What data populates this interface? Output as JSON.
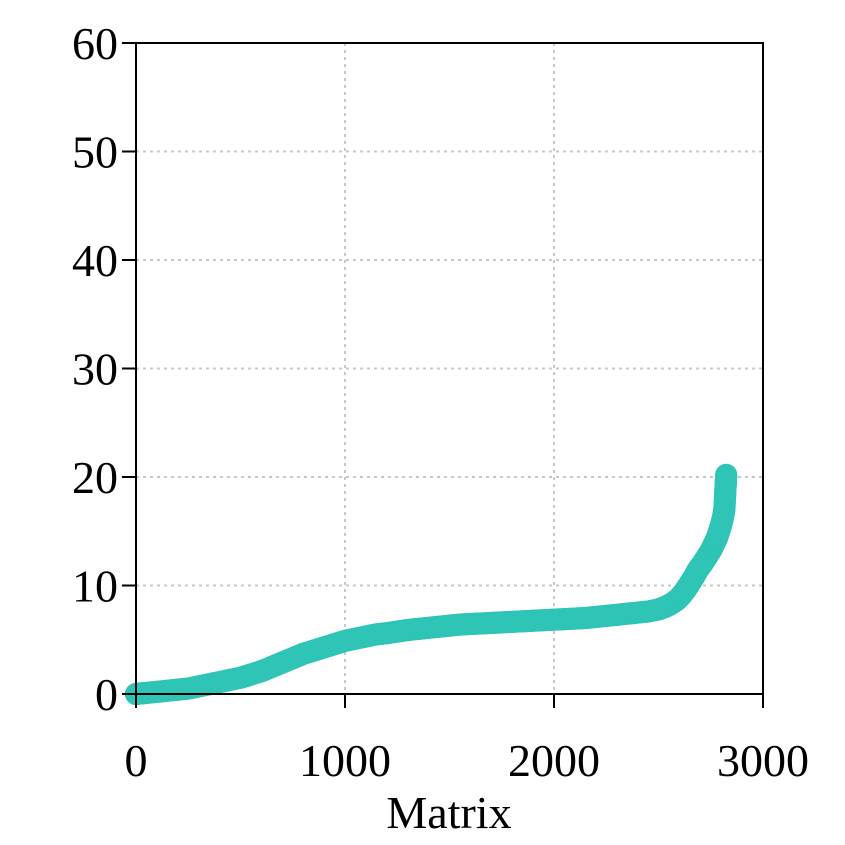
{
  "chart_data": {
    "type": "scatter",
    "title": "",
    "xlabel": "Matrix",
    "ylabel": "",
    "xlim": [
      0,
      3000
    ],
    "ylim": [
      0,
      60
    ],
    "x_ticks": [
      "0",
      "1000",
      "2000",
      "3000"
    ],
    "y_ticks": [
      "0",
      "10",
      "20",
      "30",
      "40",
      "50",
      "60"
    ],
    "grid": true,
    "marker": "hollow-circle",
    "color": "#2ec4b6",
    "series": [
      {
        "x": [
          0,
          20,
          50,
          100,
          150,
          200,
          250,
          300,
          350,
          400,
          450,
          500,
          550,
          600,
          650,
          700,
          750,
          800,
          850,
          900,
          950,
          1000,
          1050,
          1100,
          1150,
          1200,
          1250,
          1300,
          1350,
          1400,
          1450,
          1500,
          1550,
          1600,
          1650,
          1700,
          1750,
          1800,
          1850,
          1900,
          1950,
          2000,
          2050,
          2100,
          2150,
          2200,
          2250,
          2300,
          2350,
          2400,
          2450,
          2500,
          2530,
          2560,
          2590,
          2610,
          2630,
          2650,
          2670,
          2690,
          2710,
          2730,
          2750,
          2760,
          2770,
          2780,
          2790,
          2800,
          2810,
          2815,
          2818,
          2820,
          2822,
          2824
        ],
        "y": [
          0.0,
          0.05,
          0.1,
          0.2,
          0.3,
          0.4,
          0.5,
          0.7,
          0.9,
          1.1,
          1.3,
          1.5,
          1.8,
          2.1,
          2.5,
          2.9,
          3.3,
          3.7,
          4.0,
          4.3,
          4.6,
          4.9,
          5.1,
          5.3,
          5.5,
          5.6,
          5.75,
          5.9,
          6.0,
          6.1,
          6.2,
          6.3,
          6.4,
          6.45,
          6.5,
          6.55,
          6.6,
          6.65,
          6.7,
          6.75,
          6.8,
          6.85,
          6.9,
          6.95,
          7.0,
          7.1,
          7.2,
          7.3,
          7.4,
          7.5,
          7.6,
          7.8,
          8.0,
          8.3,
          8.7,
          9.1,
          9.6,
          10.2,
          10.8,
          11.5,
          12.0,
          12.6,
          13.2,
          13.6,
          14.0,
          14.4,
          15.0,
          15.6,
          16.4,
          17.0,
          18.0,
          18.8,
          19.5,
          20.2
        ]
      }
    ]
  }
}
